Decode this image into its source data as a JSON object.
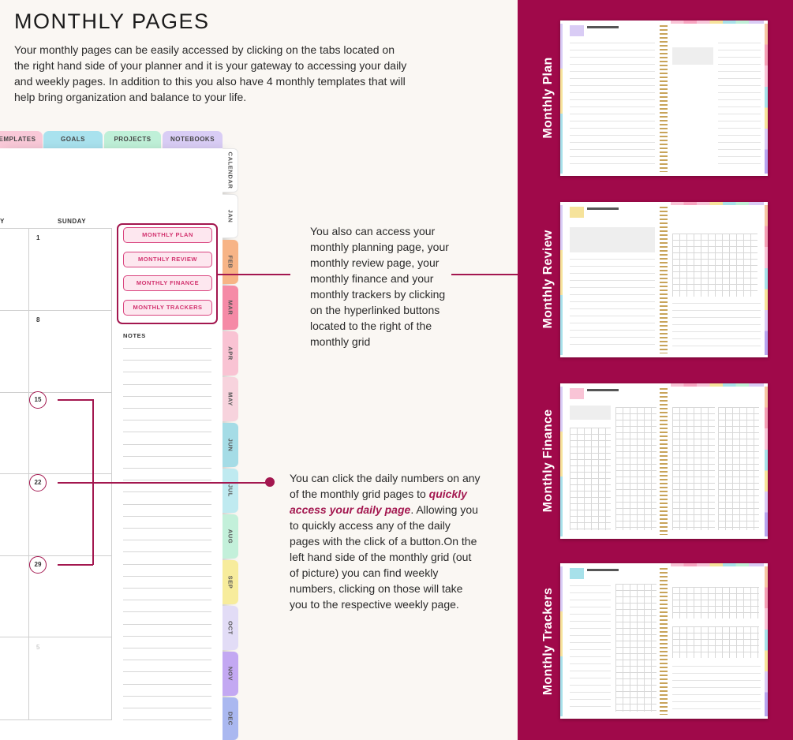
{
  "header": {
    "title": "MONTHLY PAGES",
    "intro": "Your monthly pages can be easily accessed by clicking on the tabs located on the right hand side of your planner and it is your gateway to accessing your daily and weekly pages. In addition to this you also have 4 monthly templates that will help bring organization and balance to your life."
  },
  "planner": {
    "top_tabs": [
      {
        "label": "EMPLATES",
        "color": "#f9c9d8"
      },
      {
        "label": "GOALS",
        "color": "#a9e2ee"
      },
      {
        "label": "PROJECTS",
        "color": "#bff0d8"
      },
      {
        "label": "NOTEBOOKS",
        "color": "#d9cdf5"
      }
    ],
    "side_tabs": [
      {
        "label": "CALENDAR",
        "color": "#ffffff"
      },
      {
        "label": "JAN",
        "color": "#ffffff"
      },
      {
        "label": "FEB",
        "color": "#f7b486"
      },
      {
        "label": "MAR",
        "color": "#f58aa6"
      },
      {
        "label": "APR",
        "color": "#f9c3d3"
      },
      {
        "label": "MAY",
        "color": "#f7d3dd"
      },
      {
        "label": "JUN",
        "color": "#a5dce6"
      },
      {
        "label": "JUL",
        "color": "#bfeaf0"
      },
      {
        "label": "AUG",
        "color": "#c3f0da"
      },
      {
        "label": "SEP",
        "color": "#f7ec9c"
      },
      {
        "label": "OCT",
        "color": "#e2dcf6"
      },
      {
        "label": "NOV",
        "color": "#c3a8f2"
      },
      {
        "label": "DEC",
        "color": "#aab8f0"
      }
    ],
    "day_headers": {
      "saturday_partial": "Y",
      "sunday": "SUNDAY"
    },
    "sunday_numbers": {
      "w1": "1",
      "w2": "8",
      "w3": "15",
      "w4": "22",
      "w5": "29",
      "w6": "5"
    },
    "buttons": {
      "plan": "MONTHLY PLAN",
      "review": "MONTHLY REVIEW",
      "finance": "MONTHLY FINANCE",
      "trackers": "MONTHLY TRACKERS"
    },
    "notes_label": "NOTES"
  },
  "descriptions": {
    "buttons": "You also can access your monthly planning page, your monthly review page, your monthly finance and your monthly trackers by clicking on the hyperlinked buttons located to the right of the monthly grid",
    "daily_before": "You can click the daily numbers on any of the monthly grid pages to ",
    "daily_highlight": "quickly access your daily page",
    "daily_after": ". Allowing you to quickly access any of the daily pages with the click of a button.On the left hand side of the monthly grid (out of picture) you can find weekly numbers, clicking on those will take you to the respective weekly page."
  },
  "right_panel": {
    "background": "#a0094a",
    "labels": {
      "plan": "Monthly Plan",
      "review": "Monthly Review",
      "finance": "Monthly Finance",
      "trackers": "Monthly Trackers"
    }
  },
  "accent_color": "#a3174f"
}
